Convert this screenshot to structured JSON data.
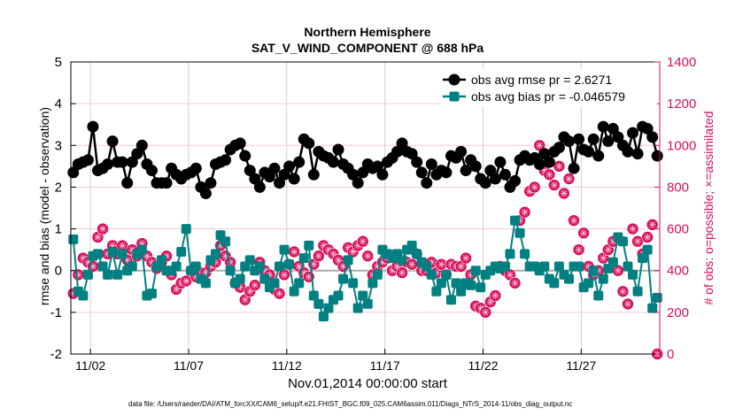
{
  "chart_data": {
    "type": "line",
    "title": "Northern Hemisphere",
    "subtitle": "SAT_V_WIND_COMPONENT @ 688 hPa",
    "xlabel": "Nov.01,2014 00:00:00 start",
    "ylabel": "rmse and bias (model - observation)",
    "ylabel_right": "# of obs: o=possible; ×=assimilated",
    "footnote": "data file: /Users/raeder/DAI/ATM_forcXX/CAM6_setup/f.e21.FHIST_BGC.f09_025.CAM6assim.011/Diags_NTrS_2014-11/obs_diag_output.nc",
    "xlim": [
      0,
      30
    ],
    "ylim": [
      -2,
      5
    ],
    "ylim_right": [
      0,
      1400
    ],
    "x_start": 0.125,
    "x_step": 0.25,
    "xticks": [
      {
        "v": 1,
        "label": "11/02"
      },
      {
        "v": 6,
        "label": "11/07"
      },
      {
        "v": 11,
        "label": "11/12"
      },
      {
        "v": 16,
        "label": "11/17"
      },
      {
        "v": 21,
        "label": "11/22"
      },
      {
        "v": 26,
        "label": "11/27"
      }
    ],
    "yticks": [
      {
        "v": -2,
        "label": "-2"
      },
      {
        "v": -1,
        "label": "-1"
      },
      {
        "v": 0,
        "label": "0"
      },
      {
        "v": 1,
        "label": "1"
      },
      {
        "v": 2,
        "label": "2"
      },
      {
        "v": 3,
        "label": "3"
      },
      {
        "v": 4,
        "label": "4"
      },
      {
        "v": 5,
        "label": "5"
      }
    ],
    "yticks_right": [
      {
        "v": 0,
        "label": "0"
      },
      {
        "v": 200,
        "label": "200"
      },
      {
        "v": 400,
        "label": "400"
      },
      {
        "v": 600,
        "label": "600"
      },
      {
        "v": 800,
        "label": "800"
      },
      {
        "v": 1000,
        "label": "1000"
      },
      {
        "v": 1200,
        "label": "1200"
      },
      {
        "v": 1400,
        "label": "1400"
      }
    ],
    "grid": true,
    "legend_position": "top-right",
    "colors": {
      "rmse": "#000000",
      "bias": "#008080",
      "obs": "#d6105a",
      "zero": "#aaaaaa",
      "grid": "#f3c9d6",
      "vgrid": "#d0d0d0"
    },
    "series": [
      {
        "name": "obs avg rmse pr = 2.6271",
        "key": "rmse",
        "values": [
          2.35,
          2.55,
          2.6,
          2.65,
          3.45,
          2.4,
          2.45,
          2.55,
          3.1,
          2.6,
          2.6,
          2.1,
          2.6,
          2.8,
          3.0,
          2.55,
          2.4,
          2.1,
          2.1,
          2.1,
          2.45,
          2.3,
          2.2,
          2.3,
          2.35,
          2.45,
          2.0,
          1.85,
          2.1,
          2.55,
          2.6,
          2.65,
          2.9,
          3.0,
          3.05,
          2.75,
          2.4,
          2.2,
          2.0,
          2.35,
          2.25,
          2.45,
          2.1,
          2.3,
          2.5,
          2.2,
          2.6,
          3.15,
          3.05,
          2.3,
          2.85,
          2.75,
          2.7,
          2.6,
          2.9,
          2.55,
          2.45,
          2.3,
          2.1,
          2.35,
          2.55,
          2.45,
          2.5,
          2.3,
          2.6,
          2.7,
          2.85,
          3.05,
          2.85,
          2.8,
          2.6,
          2.35,
          2.1,
          2.55,
          2.3,
          2.4,
          2.35,
          2.75,
          2.7,
          2.85,
          2.4,
          2.65,
          2.5,
          2.2,
          2.1,
          2.4,
          2.2,
          2.6,
          2.3,
          2.0,
          2.15,
          2.65,
          2.75,
          2.65,
          2.7,
          2.55,
          2.8,
          2.6,
          2.85,
          2.95,
          3.2,
          3.1,
          2.45,
          3.15,
          2.9,
          2.85,
          3.15,
          2.75,
          3.45,
          3.1,
          3.4,
          3.2,
          3.0,
          2.85,
          3.3,
          2.8,
          3.45,
          3.4,
          3.2,
          2.75
        ]
      },
      {
        "name": "obs avg bias pr = -0.046579",
        "key": "bias",
        "values": [
          0.75,
          -0.5,
          -0.6,
          -0.1,
          0.35,
          0.4,
          0.1,
          -0.1,
          0.45,
          -0.1,
          0.4,
          0.0,
          0.1,
          0.4,
          0.5,
          -0.6,
          -0.55,
          0.1,
          0.25,
          0.0,
          0.0,
          0.1,
          0.45,
          1.0,
          0.0,
          0.1,
          -0.2,
          -0.3,
          0.25,
          0.4,
          0.85,
          0.7,
          0.0,
          -0.3,
          -0.2,
          0.1,
          0.25,
          0.0,
          0.1,
          -0.2,
          -0.4,
          -0.3,
          0.1,
          0.5,
          0.15,
          -0.5,
          -0.3,
          0.3,
          0.6,
          -0.6,
          -0.8,
          -1.1,
          -0.9,
          -0.7,
          -0.6,
          -0.2,
          0.25,
          -0.3,
          -0.9,
          -0.6,
          -0.8,
          -0.3,
          -0.1,
          0.5,
          0.4,
          0.3,
          0.4,
          0.25,
          0.5,
          0.6,
          0.4,
          0.2,
          0.1,
          -0.1,
          -0.5,
          -0.3,
          -0.1,
          -0.7,
          -0.3,
          -0.5,
          -0.3,
          -0.35,
          0.0,
          -0.4,
          -0.1,
          0.0,
          0.1,
          0.05,
          0.1,
          0.4,
          1.2,
          0.9,
          0.4,
          0.1,
          0.1,
          0.0,
          0.1,
          -0.2,
          -0.3,
          0.1,
          -0.1,
          -0.2,
          0.1,
          0.1,
          -0.4,
          -0.3,
          0.0,
          -0.6,
          -0.2,
          0.05,
          0.2,
          0.8,
          0.7,
          0.1,
          -0.1,
          -0.5,
          0.3,
          0.5,
          -0.9,
          -0.65
        ]
      },
      {
        "name": "obs possible / assimilated",
        "key": "obs",
        "axis": "right",
        "values": [
          290,
          380,
          460,
          440,
          420,
          560,
          600,
          480,
          520,
          480,
          520,
          450,
          500,
          470,
          530,
          470,
          440,
          410,
          440,
          470,
          380,
          310,
          340,
          350,
          400,
          370,
          390,
          390,
          420,
          440,
          520,
          470,
          440,
          340,
          320,
          260,
          300,
          330,
          440,
          400,
          380,
          310,
          290,
          380,
          430,
          490,
          420,
          390,
          370,
          430,
          470,
          520,
          500,
          480,
          450,
          420,
          510,
          490,
          520,
          540,
          470,
          380,
          420,
          440,
          460,
          400,
          420,
          390,
          440,
          430,
          480,
          400,
          400,
          440,
          390,
          430,
          380,
          430,
          420,
          420,
          460,
          380,
          230,
          220,
          200,
          250,
          280,
          420,
          400,
          380,
          340,
          640,
          680,
          780,
          800,
          1000,
          880,
          860,
          810,
          900,
          770,
          840,
          640,
          500,
          580,
          420,
          380,
          400,
          460,
          500,
          540,
          400,
          300,
          240,
          600,
          540,
          480,
          560,
          620,
          0
        ]
      }
    ]
  }
}
